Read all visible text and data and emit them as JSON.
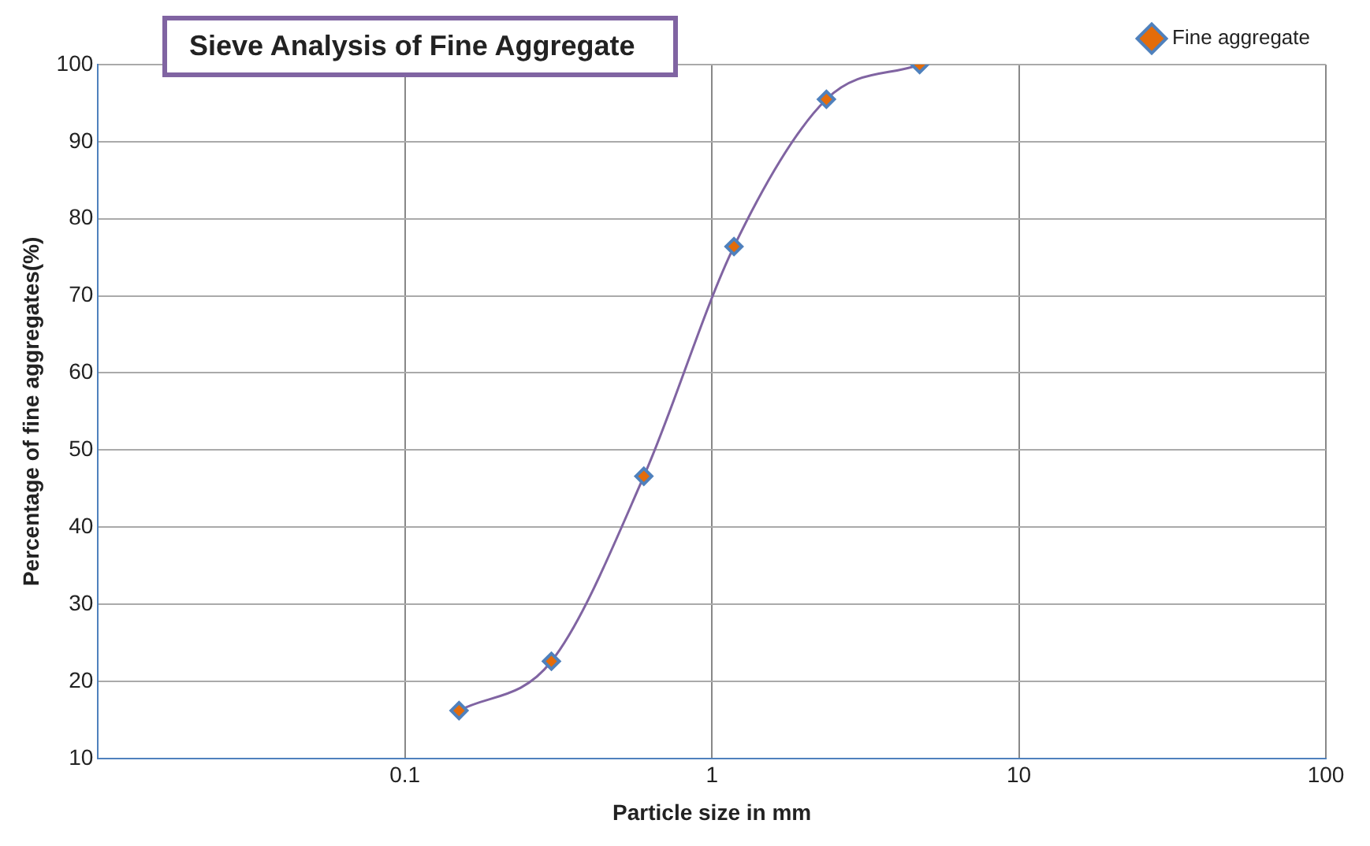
{
  "chart_data": {
    "type": "line",
    "title": "Sieve Analysis of Fine  Aggregate",
    "xlabel": "Particle size in mm",
    "ylabel": "Percentage of fine aggregates(%)",
    "x": [
      0.15,
      0.3,
      0.6,
      1.18,
      2.36,
      4.75
    ],
    "series": [
      {
        "name": "Fine aggregate",
        "color": "#8064a2",
        "values": [
          16.2,
          22.6,
          46.6,
          76.4,
          95.5,
          100
        ]
      }
    ],
    "log": "x",
    "xlim": [
      0.01,
      100
    ],
    "xticks": [
      {
        "value": 0.01,
        "label": null
      },
      0.1,
      1,
      10,
      100
    ],
    "ylim": [
      10,
      100
    ],
    "yticks": [
      10,
      20,
      30,
      40,
      50,
      60,
      70,
      80,
      90,
      100
    ],
    "grid": true,
    "legend": "top right",
    "marker": "diamond",
    "line_style": "solid"
  }
}
